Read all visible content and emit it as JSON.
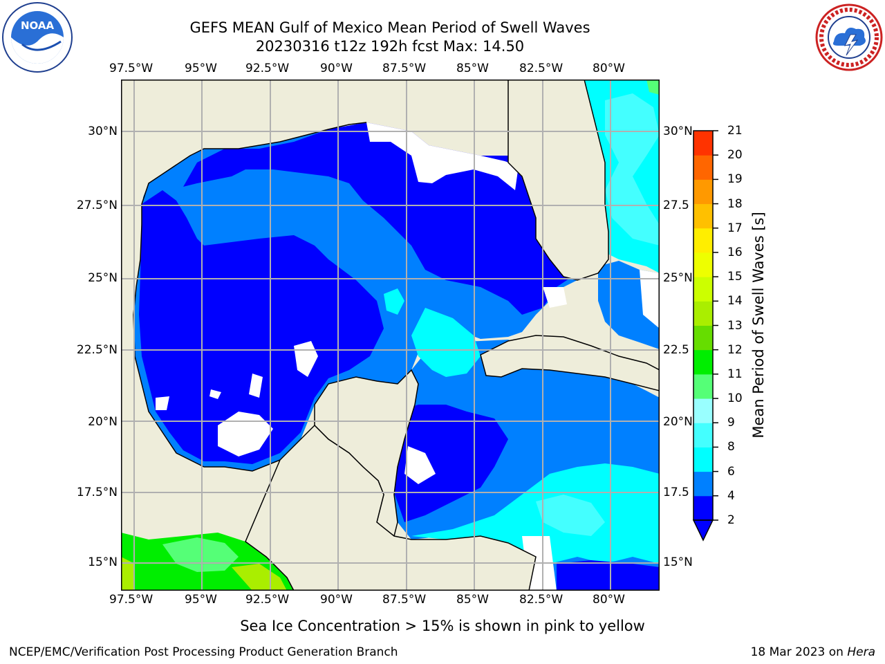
{
  "header": {
    "title_line1": "GEFS MEAN Gulf of Mexico Mean Period of Swell Waves",
    "title_line2": "20230316 t12z 192h fcst   Max: 14.50"
  },
  "logos": {
    "left": {
      "icon": "noaa-logo",
      "text": "NOAA"
    },
    "right": {
      "icon": "nws-logo"
    }
  },
  "map": {
    "lon_labels_top": [
      "97.5°W",
      "95°W",
      "92.5°W",
      "90°W",
      "87.5°W",
      "85°W",
      "82.5°W",
      "80°W"
    ],
    "lon_labels_bottom": [
      "97.5°W",
      "95°W",
      "92.5°W",
      "90°W",
      "87.5°W",
      "85°W",
      "82.5°W",
      "80°W"
    ],
    "lat_labels_left": [
      "30°N",
      "27.5°N",
      "25°N",
      "22.5°N",
      "20°N",
      "17.5°N",
      "15°N"
    ],
    "lat_labels_right": [
      "30°N",
      "27.5",
      "25°N",
      "22.5",
      "20°N",
      "17.5",
      "15°N"
    ],
    "colors": {
      "land": "#eeedda",
      "no_data": "#ffffff",
      "grid": "#b0b0b0"
    }
  },
  "colorbar": {
    "label": "Mean Period of Swell Waves [s]",
    "ticks": [
      "2",
      "4",
      "6",
      "8",
      "9",
      "10",
      "11",
      "12",
      "13",
      "14",
      "15",
      "16",
      "17",
      "18",
      "19",
      "20",
      "21"
    ],
    "colors": [
      "#0000ff",
      "#0080ff",
      "#00ffff",
      "#44ffff",
      "#99ffff",
      "#55ff77",
      "#00ee00",
      "#66dd00",
      "#aaee00",
      "#ccff00",
      "#eeff00",
      "#ffee00",
      "#ffc000",
      "#ff9900",
      "#ff6600",
      "#ff3300",
      "#ff0000"
    ],
    "extend_color": "#0000ff"
  },
  "notes": {
    "sea_ice": "Sea Ice Concentration > 15% is shown in pink to yellow"
  },
  "footer": {
    "left": "NCEP/EMC/Verification Post Processing Product Generation Branch",
    "right_date": "18 Mar 2023 on ",
    "right_host": "Hera"
  }
}
